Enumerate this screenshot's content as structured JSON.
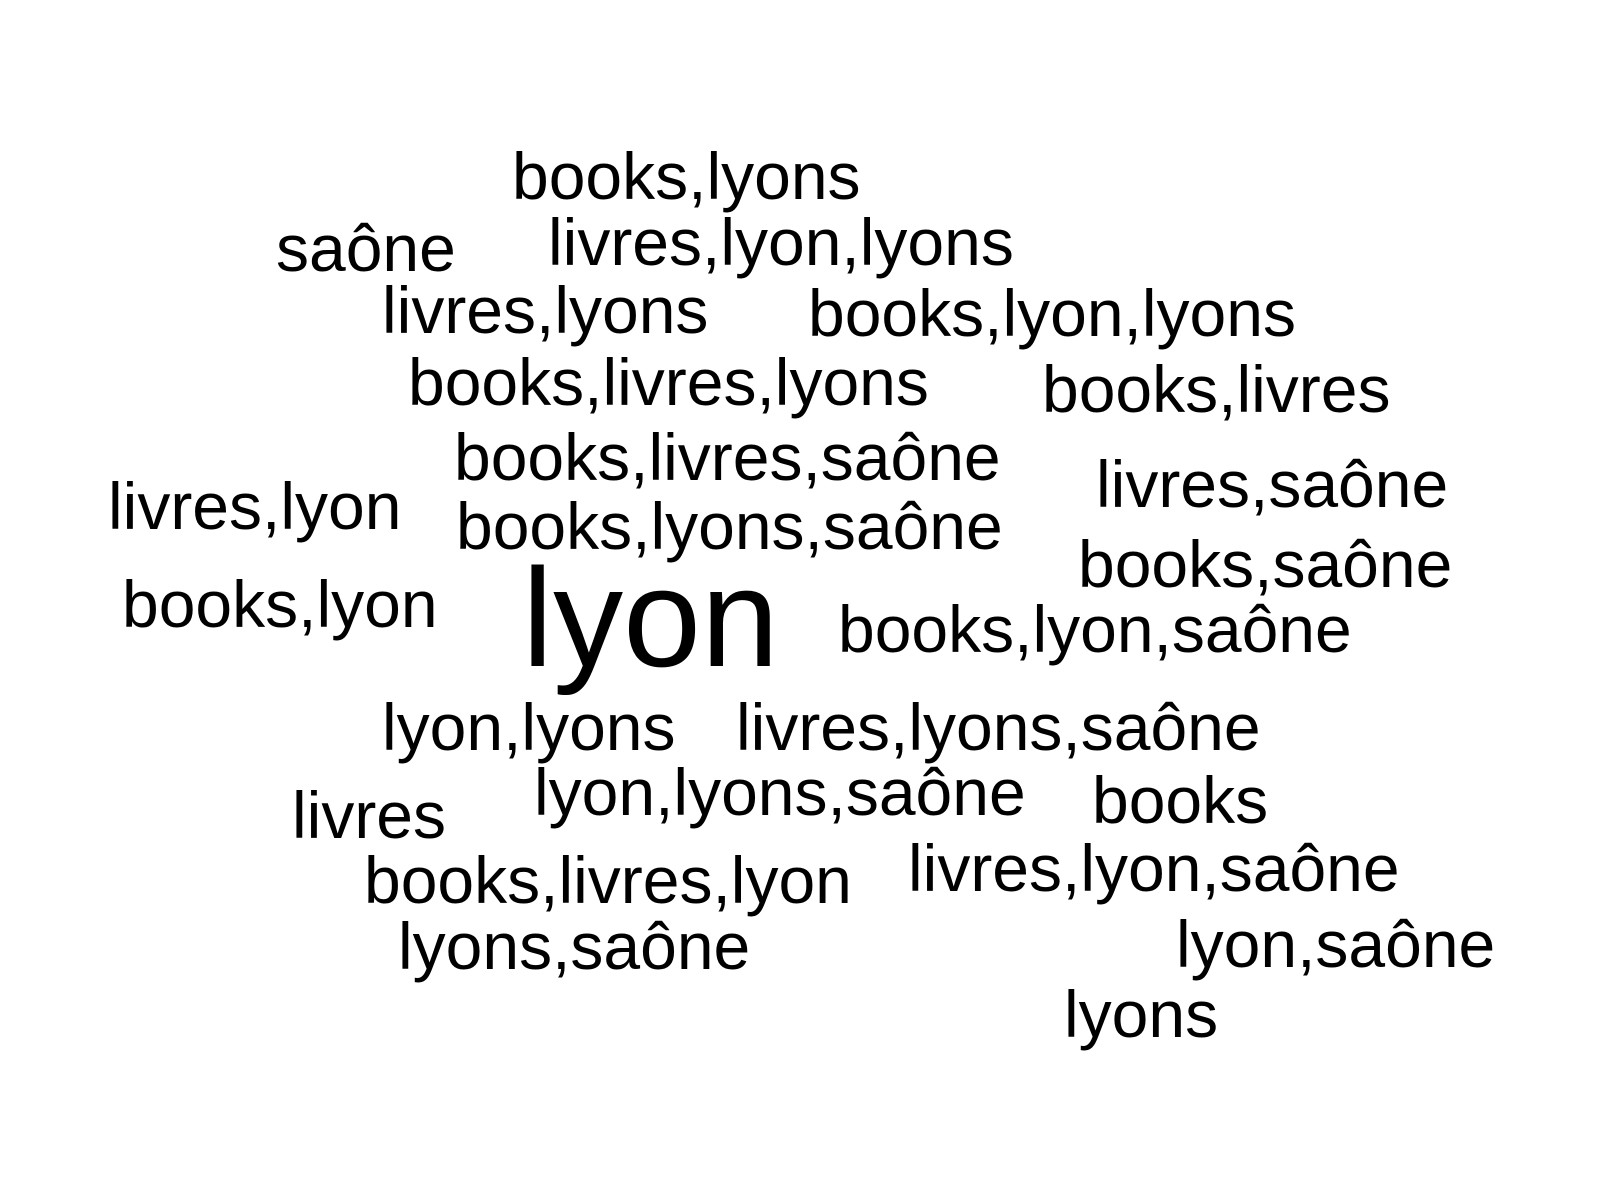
{
  "words": [
    "books,lyons",
    "saône",
    "livres,lyon,lyons",
    "livres,lyons",
    "books,lyon,lyons",
    "books,livres,lyons",
    "books,livres",
    "books,livres,saône",
    "livres,saône",
    "livres,lyon",
    "books,lyons,saône",
    "books,saône",
    "books,lyon",
    "lyon",
    "books,lyon,saône",
    "lyon,lyons",
    "livres,lyons,saône",
    "livres",
    "lyon,lyons,saône",
    "books",
    "livres,lyon,saône",
    "books,livres,lyon",
    "lyons,saône",
    "lyon,saône",
    "lyons"
  ],
  "text_color": "#000000",
  "background_color": "#ffffff"
}
